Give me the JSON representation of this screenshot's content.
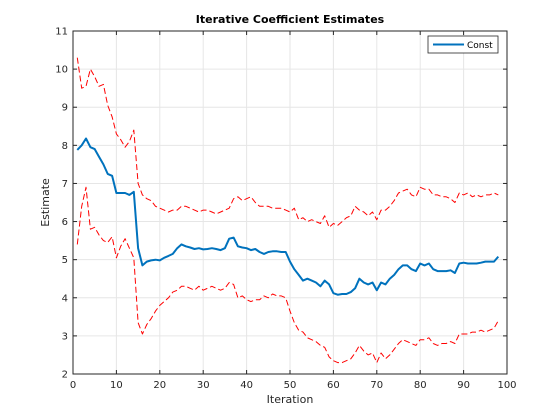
{
  "chart_data": {
    "type": "line",
    "title": "Iterative Coefficient Estimates",
    "xlabel": "Iteration",
    "ylabel": "Estimate",
    "xlim": [
      0,
      100
    ],
    "ylim": [
      2,
      11
    ],
    "xticks": [
      0,
      10,
      20,
      30,
      40,
      50,
      60,
      70,
      80,
      90,
      100
    ],
    "yticks": [
      2,
      3,
      4,
      5,
      6,
      7,
      8,
      9,
      10,
      11
    ],
    "grid": true,
    "legend_position": "top-right",
    "colors": {
      "estimate": "#0072BD",
      "bounds": "#FF0000"
    },
    "series": [
      {
        "name": "Const",
        "style": "solid",
        "x": [
          1,
          2,
          3,
          4,
          5,
          6,
          7,
          8,
          9,
          10,
          11,
          12,
          13,
          14,
          15,
          16,
          17,
          18,
          19,
          20,
          21,
          22,
          23,
          24,
          25,
          26,
          27,
          28,
          29,
          30,
          31,
          32,
          33,
          34,
          35,
          36,
          37,
          38,
          39,
          40,
          41,
          42,
          43,
          44,
          45,
          46,
          47,
          48,
          49,
          50,
          51,
          52,
          53,
          54,
          55,
          56,
          57,
          58,
          59,
          60,
          61,
          62,
          63,
          64,
          65,
          66,
          67,
          68,
          69,
          70,
          71,
          72,
          73,
          74,
          75,
          76,
          77,
          78,
          79,
          80,
          81,
          82,
          83,
          84,
          85,
          86,
          87,
          88,
          89,
          90,
          91,
          92,
          93,
          94,
          95,
          96,
          97,
          98
        ],
        "values": [
          7.88,
          8.0,
          8.18,
          7.95,
          7.9,
          7.7,
          7.5,
          7.25,
          7.2,
          6.75,
          6.75,
          6.75,
          6.7,
          6.78,
          5.3,
          4.85,
          4.95,
          4.98,
          5.0,
          4.98,
          5.05,
          5.1,
          5.15,
          5.3,
          5.4,
          5.35,
          5.32,
          5.28,
          5.3,
          5.27,
          5.28,
          5.3,
          5.28,
          5.25,
          5.3,
          5.55,
          5.58,
          5.35,
          5.32,
          5.3,
          5.25,
          5.28,
          5.2,
          5.15,
          5.2,
          5.22,
          5.22,
          5.2,
          5.2,
          4.95,
          4.75,
          4.6,
          4.45,
          4.5,
          4.45,
          4.4,
          4.3,
          4.45,
          4.35,
          4.12,
          4.08,
          4.1,
          4.1,
          4.15,
          4.25,
          4.5,
          4.4,
          4.35,
          4.4,
          4.2,
          4.4,
          4.35,
          4.5,
          4.6,
          4.75,
          4.85,
          4.85,
          4.75,
          4.7,
          4.9,
          4.85,
          4.9,
          4.75,
          4.7,
          4.7,
          4.7,
          4.72,
          4.65,
          4.9,
          4.92,
          4.9,
          4.9,
          4.9,
          4.92,
          4.95,
          4.95,
          4.95,
          5.08
        ]
      },
      {
        "name": "",
        "style": "dashed",
        "x": [
          1,
          2,
          3,
          4,
          5,
          6,
          7,
          8,
          9,
          10,
          11,
          12,
          13,
          14,
          15,
          16,
          17,
          18,
          19,
          20,
          21,
          22,
          23,
          24,
          25,
          26,
          27,
          28,
          29,
          30,
          31,
          32,
          33,
          34,
          35,
          36,
          37,
          38,
          39,
          40,
          41,
          42,
          43,
          44,
          45,
          46,
          47,
          48,
          49,
          50,
          51,
          52,
          53,
          54,
          55,
          56,
          57,
          58,
          59,
          60,
          61,
          62,
          63,
          64,
          65,
          66,
          67,
          68,
          69,
          70,
          71,
          72,
          73,
          74,
          75,
          76,
          77,
          78,
          79,
          80,
          81,
          82,
          83,
          84,
          85,
          86,
          87,
          88,
          89,
          90,
          91,
          92,
          93,
          94,
          95,
          96,
          97,
          98
        ],
        "values": [
          10.3,
          9.5,
          9.55,
          10.0,
          9.8,
          9.55,
          9.6,
          9.05,
          8.75,
          8.3,
          8.15,
          7.95,
          8.1,
          8.4,
          7.0,
          6.7,
          6.6,
          6.55,
          6.4,
          6.35,
          6.3,
          6.25,
          6.3,
          6.3,
          6.4,
          6.4,
          6.35,
          6.3,
          6.25,
          6.3,
          6.3,
          6.25,
          6.2,
          6.25,
          6.3,
          6.35,
          6.6,
          6.65,
          6.55,
          6.6,
          6.65,
          6.5,
          6.4,
          6.4,
          6.4,
          6.35,
          6.35,
          6.35,
          6.3,
          6.25,
          6.35,
          6.05,
          6.1,
          6.0,
          6.05,
          6.0,
          5.95,
          6.15,
          5.85,
          5.95,
          5.9,
          6.0,
          6.1,
          6.15,
          6.4,
          6.3,
          6.25,
          6.15,
          6.25,
          6.05,
          6.3,
          6.3,
          6.4,
          6.55,
          6.75,
          6.8,
          6.85,
          6.7,
          6.65,
          6.9,
          6.85,
          6.85,
          6.7,
          6.7,
          6.65,
          6.65,
          6.6,
          6.5,
          6.75,
          6.7,
          6.75,
          6.65,
          6.7,
          6.65,
          6.7,
          6.7,
          6.75,
          6.7
        ]
      },
      {
        "name": "",
        "style": "dashed",
        "x": [
          1,
          2,
          3,
          4,
          5,
          6,
          7,
          8,
          9,
          10,
          11,
          12,
          13,
          14,
          15,
          16,
          17,
          18,
          19,
          20,
          21,
          22,
          23,
          24,
          25,
          26,
          27,
          28,
          29,
          30,
          31,
          32,
          33,
          34,
          35,
          36,
          37,
          38,
          39,
          40,
          41,
          42,
          43,
          44,
          45,
          46,
          47,
          48,
          49,
          50,
          51,
          52,
          53,
          54,
          55,
          56,
          57,
          58,
          59,
          60,
          61,
          62,
          63,
          64,
          65,
          66,
          67,
          68,
          69,
          70,
          71,
          72,
          73,
          74,
          75,
          76,
          77,
          78,
          79,
          80,
          81,
          82,
          83,
          84,
          85,
          86,
          87,
          88,
          89,
          90,
          91,
          92,
          93,
          94,
          95,
          96,
          97,
          98
        ],
        "values": [
          5.4,
          6.4,
          6.9,
          5.8,
          5.85,
          5.65,
          5.5,
          5.45,
          5.6,
          5.05,
          5.35,
          5.55,
          5.3,
          5.05,
          3.35,
          3.05,
          3.3,
          3.45,
          3.65,
          3.8,
          3.9,
          4.0,
          4.15,
          4.2,
          4.3,
          4.3,
          4.25,
          4.2,
          4.3,
          4.2,
          4.25,
          4.3,
          4.25,
          4.2,
          4.25,
          4.4,
          4.35,
          4.0,
          4.05,
          3.95,
          3.9,
          3.95,
          3.95,
          4.05,
          4.0,
          4.1,
          4.05,
          4.05,
          4.0,
          3.65,
          3.35,
          3.15,
          3.1,
          2.95,
          2.9,
          2.85,
          2.75,
          2.7,
          2.45,
          2.35,
          2.3,
          2.3,
          2.35,
          2.4,
          2.55,
          2.75,
          2.6,
          2.5,
          2.55,
          2.3,
          2.55,
          2.4,
          2.5,
          2.65,
          2.8,
          2.9,
          2.85,
          2.8,
          2.75,
          2.9,
          2.9,
          2.95,
          2.8,
          2.75,
          2.8,
          2.8,
          2.85,
          2.8,
          3.05,
          3.05,
          3.05,
          3.1,
          3.1,
          3.15,
          3.1,
          3.15,
          3.2,
          3.4
        ]
      }
    ]
  }
}
